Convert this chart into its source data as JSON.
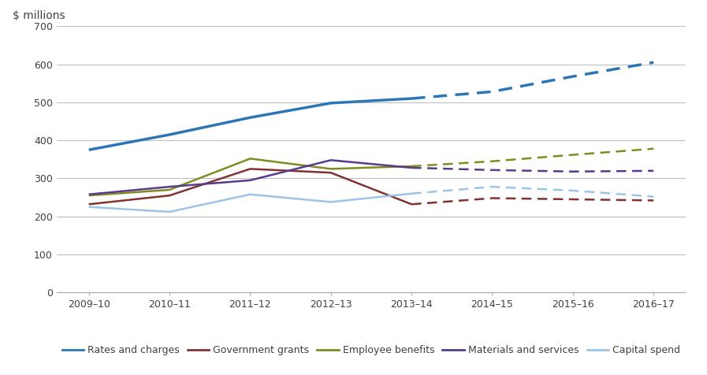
{
  "years_all": [
    "2009–10",
    "2010–11",
    "2011–12",
    "2012–13",
    "2013–14",
    "2014–15",
    "2015–16",
    "2016–17"
  ],
  "series": {
    "Rates and charges": {
      "actual": [
        375,
        415,
        460,
        498,
        510
      ],
      "forecast": [
        510,
        528,
        568,
        605
      ],
      "color": "#2e75b6",
      "linewidth": 2.5
    },
    "Government grants": {
      "actual": [
        232,
        255,
        325,
        315,
        232
      ],
      "forecast": [
        232,
        248,
        245,
        242
      ],
      "color": "#833232",
      "linewidth": 1.8
    },
    "Employee benefits": {
      "actual": [
        255,
        270,
        352,
        325,
        332
      ],
      "forecast": [
        332,
        345,
        362,
        378
      ],
      "color": "#7f8c20",
      "linewidth": 1.8
    },
    "Materials and services": {
      "actual": [
        258,
        278,
        295,
        348,
        328
      ],
      "forecast": [
        328,
        322,
        318,
        320
      ],
      "color": "#5a3a8a",
      "linewidth": 1.8
    },
    "Capital spend": {
      "actual": [
        225,
        212,
        258,
        238,
        260
      ],
      "forecast": [
        260,
        278,
        268,
        252
      ],
      "color": "#9dc3e6",
      "linewidth": 1.8
    }
  },
  "series_order": [
    "Rates and charges",
    "Government grants",
    "Employee benefits",
    "Materials and services",
    "Capital spend"
  ],
  "ylabel": "$ millions",
  "ylim": [
    0,
    700
  ],
  "yticks": [
    0,
    100,
    200,
    300,
    400,
    500,
    600,
    700
  ],
  "background_color": "#ffffff",
  "grid_color": "#bebebe",
  "ylabel_fontsize": 10,
  "tick_fontsize": 9,
  "legend_fontsize": 9
}
